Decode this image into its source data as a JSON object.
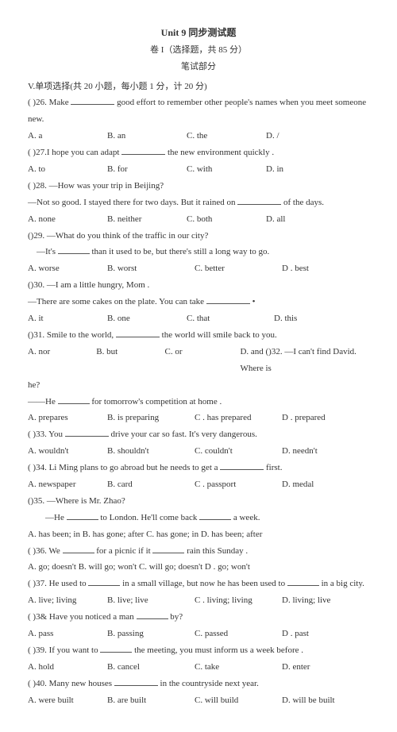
{
  "header": {
    "title": "Unit 9 同步测试题",
    "sub1": "卷 I（选择题，共 85 分）",
    "sub2": "笔试部分"
  },
  "section": "V.单项选择(共 20 小题，每小题 1 分，计 20 分)",
  "q26": {
    "prompt_a": "(   )26. Make",
    "prompt_b": "good effort to remember other people's names when you meet someone new.",
    "A": "A. a",
    "B": "B. an",
    "C": "C. the",
    "D": "D. /"
  },
  "q27": {
    "prompt_a": "(   )27.I hope you can adapt",
    "prompt_b": "the new environment quickly .",
    "A": "A. to",
    "B": "B. for",
    "C": "C. with",
    "D": "D. in"
  },
  "q28": {
    "prompt": "(   )28. —How was your trip in Beijing?",
    "line2a": "—Not so good. I stayed there for two days. But it rained on",
    "line2b": "of the days.",
    "A": "A. none",
    "B": "B. neither",
    "C": "C. both",
    "D": "D. all"
  },
  "q29": {
    "prompt": "()29. —What do you think of the traffic in our city?",
    "line2a": "—It's",
    "line2b": "than it used to be, but there's still a long way to go.",
    "A": "A. worse",
    "B": "B. worst",
    "C": "C. better",
    "D": "D . best"
  },
  "q30": {
    "prompt": "()30. —I am a little hungry, Mom .",
    "line2a": "—There are some cakes on the plate. You can take",
    "dot": "•",
    "A": "A. it",
    "B": "B. one",
    "C": "C. that",
    "D": "D. this"
  },
  "q31": {
    "prompt_a": "()31. Smile to the world,",
    "prompt_b": "the world will smile back to you.",
    "A": "A. nor",
    "B": "B. but",
    "C": "C. or",
    "D": "D. and ()32. —I can't find David. Where is",
    "he": "he?",
    "line3a": "——He",
    "line3b": "for tomorrow's competition at home .",
    "A2": "A. prepares",
    "B2": "B. is preparing",
    "C2": "C . has prepared",
    "D2": "D . prepared"
  },
  "q33": {
    "prompt_a": "(  )33. You",
    "prompt_b": "drive your car so fast. It's very dangerous.",
    "A": "A. wouldn't",
    "B": "B. shouldn't",
    "C": "C. couldn't",
    "D": "D. needn't"
  },
  "q34": {
    "prompt_a": "(   )34. Li Ming plans to go abroad but he needs to get a",
    "prompt_b": "first.",
    "A": "A. newspaper",
    "B": "B. card",
    "C": "C . passport",
    "D": "D. medal"
  },
  "q35": {
    "prompt": "()35. —Where is Mr. Zhao?",
    "line2a": "—He",
    "line2b": "to London. He'll come back",
    "line2c": "a week.",
    "opts": "A. has been; in B. has gone; after C. has gone; in D. has been; after"
  },
  "q36": {
    "prompt_a": "(  )36. We",
    "prompt_b": "for a picnic if it",
    "prompt_c": "rain this Sunday .",
    "opts": "A. go; doesn't B. will go; won't C. will go; doesn't D .  go; won't"
  },
  "q37": {
    "prompt_a": "(   )37. He used to",
    "prompt_b": "in a small village, but now he has been used to",
    "prompt_c": "in a big city.",
    "A": "A. live; living",
    "B": "B. live; live",
    "C": "C . living; living",
    "D": "D. living; live"
  },
  "q38": {
    "prompt_a": "(   )3& Have you noticed a man",
    "prompt_b": "by?",
    "A": "A. pass",
    "B": "B. passing",
    "C": "C. passed",
    "D": "D . past"
  },
  "q39": {
    "prompt_a": "(   )39. If you want to",
    "prompt_b": "the meeting, you must inform us a week before .",
    "A": "A. hold",
    "B": "B. cancel",
    "C": "C. take",
    "D": "D. enter"
  },
  "q40": {
    "prompt_a": "(   )40. Many new houses",
    "prompt_b": "in the countryside next year.",
    "A": "A. were built",
    "B": "B. are built",
    "C": "C. will build",
    "D": "D. will be built"
  }
}
